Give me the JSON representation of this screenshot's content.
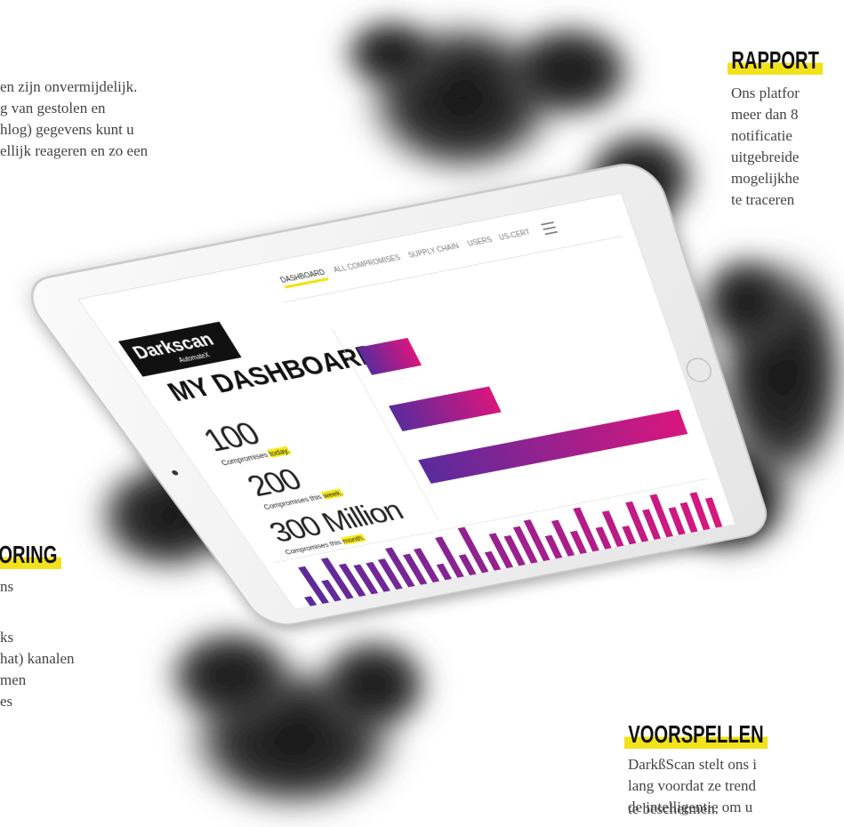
{
  "intro_left": {
    "lines": [
      "en zijn onvermijdelijk.",
      "g van gestolen en",
      "hlog) gegevens kunt u",
      "ellijk reageren en zo een"
    ]
  },
  "rapport": {
    "heading": "RAPPORT",
    "lines": [
      "Ons platfor",
      "meer dan 8",
      "notificatie",
      "uitgebreide",
      "mogelijkhe",
      "te traceren"
    ]
  },
  "monitoring": {
    "heading": "ORING",
    "lines": [
      "ns",
      "ks",
      "hat) kanalen",
      "men",
      "es"
    ]
  },
  "voorspellen": {
    "heading": "VOORSPELLEN",
    "lines": [
      "DarkßScan stelt ons i",
      "lang voordat ze trend",
      "de intelligentie om u",
      "te beschermen."
    ]
  },
  "tablet": {
    "logo": "Darkscan",
    "logo_sub": "AutomateX",
    "nav": [
      "DASHBOARD",
      "ALL COMPROMISES",
      "SUPPLY CHAIN",
      "USERS",
      "US-CERT"
    ],
    "title": "MY DASHBOARD.",
    "stats": [
      {
        "value": "100",
        "label": "Compromises",
        "highlight": "today."
      },
      {
        "value": "200",
        "label": "Compromises this",
        "highlight": "week."
      },
      {
        "value": "300 Million",
        "label": "Compromises this",
        "highlight": "month."
      }
    ]
  }
}
